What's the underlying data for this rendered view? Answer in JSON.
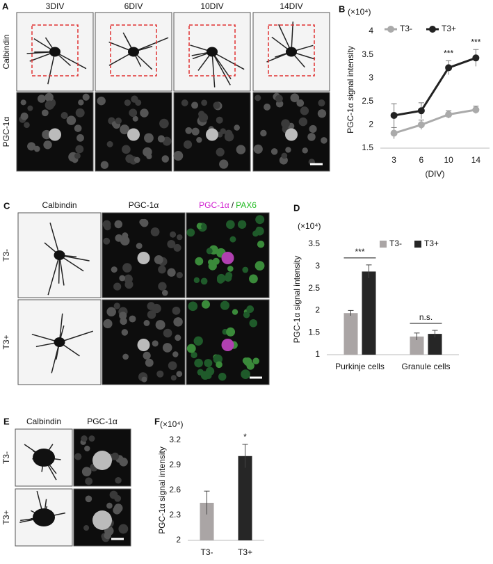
{
  "panels": [
    {
      "letter": "A",
      "columns": [
        "3DIV",
        "6DIV",
        "10DIV",
        "14DIV"
      ],
      "rows": [
        "Calbindin",
        "PGC-1α"
      ]
    },
    {
      "letter": "C",
      "columns": [
        "Calbindin",
        "PGC-1α"
      ],
      "merge": [
        "PGC-1α",
        "/",
        "PAX6"
      ],
      "rows": [
        "T3-",
        "T3+"
      ]
    },
    {
      "letter": "E",
      "columns": [
        "Calbindin",
        "PGC-1α"
      ],
      "rows": [
        "T3-",
        "T3+"
      ]
    }
  ],
  "chart_data": [
    {
      "type": "line",
      "panel": "B",
      "unit_label": "(×10⁴)",
      "y_label": "PGC-1α signal intensity",
      "x_label": "(DIV)",
      "categories": [
        "3",
        "6",
        "10",
        "14"
      ],
      "series": [
        {
          "name": "T3-",
          "color": "#aaaaaa",
          "values": [
            1.82,
            2.0,
            2.22,
            2.32
          ],
          "errors": [
            0.12,
            0.1,
            0.08,
            0.08
          ]
        },
        {
          "name": "T3+",
          "color": "#222222",
          "values": [
            2.2,
            2.3,
            3.22,
            3.43
          ],
          "errors": [
            0.25,
            0.17,
            0.15,
            0.18
          ]
        }
      ],
      "ylim": [
        1.5,
        4
      ],
      "yticks": [
        1.5,
        2,
        2.5,
        3,
        3.5,
        4
      ],
      "annotations": [
        {
          "text": "***",
          "category": "10"
        },
        {
          "text": "***",
          "category": "14"
        }
      ]
    },
    {
      "type": "bar",
      "panel": "D",
      "unit_label": "(×10⁴)",
      "y_label": "PGC-1α signal intensity",
      "categories": [
        "Purkinje cells",
        "Granule cells"
      ],
      "series": [
        {
          "name": "T3-",
          "color": "#aaa5a5",
          "values": [
            1.94,
            1.41
          ],
          "errors": [
            0.06,
            0.08
          ]
        },
        {
          "name": "T3+",
          "color": "#262626",
          "values": [
            2.88,
            1.47
          ],
          "errors": [
            0.15,
            0.08
          ]
        }
      ],
      "ylim": [
        1,
        3.5
      ],
      "yticks": [
        1,
        1.5,
        2,
        2.5,
        3,
        3.5
      ],
      "annotations": [
        {
          "text": "***",
          "category": "Purkinje cells",
          "bracket": true
        },
        {
          "text": "n.s.",
          "category": "Granule cells",
          "bracket": true
        }
      ]
    },
    {
      "type": "bar",
      "panel": "F",
      "unit_label": "(×10⁴)",
      "y_label": "PGC-1α signal intensity",
      "categories": [
        "T3-",
        "T3+"
      ],
      "values": [
        2.45,
        3.01
      ],
      "errors": [
        0.14,
        0.14
      ],
      "colors": [
        "#aaa5a5",
        "#262626"
      ],
      "ylim": [
        2,
        3.2
      ],
      "yticks": [
        2,
        2.3,
        2.6,
        2.9,
        3.2
      ],
      "annotations": [
        {
          "text": "*",
          "category": "T3+"
        }
      ]
    }
  ]
}
